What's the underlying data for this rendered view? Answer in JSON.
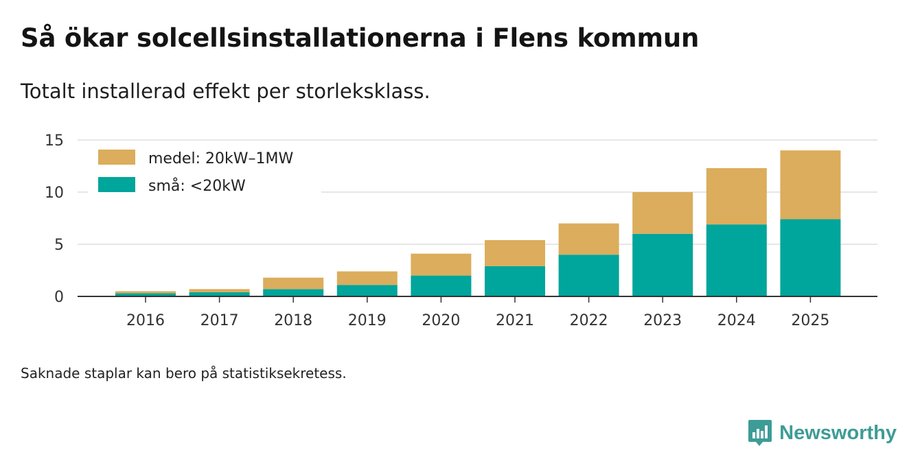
{
  "chart_data": {
    "type": "bar",
    "stacked": true,
    "title": "Så ökar solcellsinstallationerna i Flens kommun",
    "subtitle": "Totalt installerad effekt per storleksklass.",
    "categories": [
      "2016",
      "2017",
      "2018",
      "2019",
      "2020",
      "2021",
      "2022",
      "2023",
      "2024",
      "2025"
    ],
    "series": [
      {
        "name": "små: <20kW",
        "color": "#00a59b",
        "values": [
          0.3,
          0.4,
          0.7,
          1.1,
          2.0,
          2.9,
          4.0,
          6.0,
          6.9,
          7.4
        ]
      },
      {
        "name": "medel: 20kW–1MW",
        "color": "#dbad5c",
        "values": [
          0.2,
          0.3,
          1.1,
          1.3,
          2.1,
          2.5,
          3.0,
          4.0,
          5.4,
          6.6
        ]
      }
    ],
    "ylim": [
      0,
      15
    ],
    "yticks": [
      0,
      5,
      10,
      15
    ],
    "grid": true,
    "legend": "top-left",
    "xlabel": "",
    "ylabel": ""
  },
  "legend": [
    {
      "label": "medel: 20kW–1MW",
      "color": "#dbad5c"
    },
    {
      "label": "små: <20kW",
      "color": "#00a59b"
    }
  ],
  "note": "Saknade staplar kan bero på statistiksekretess.",
  "brand": {
    "name": "Newsworthy",
    "icon": "newsworthy-logo-icon",
    "color": "#3d9c96"
  }
}
